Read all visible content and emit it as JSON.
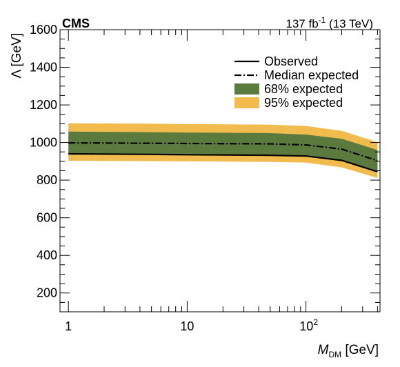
{
  "chart_data": {
    "type": "line",
    "experiment": "CMS",
    "luminosity": {
      "base": "137 fb",
      "exp": "-1",
      "suffix": " (13 TeV)"
    },
    "xlabel": {
      "main": "M",
      "sub": "DM",
      "unit": " [GeV]"
    },
    "ylabel": {
      "main": "Λ",
      "unit": " [GeV]"
    },
    "xscale": "log",
    "xlim": [
      0.85,
      420
    ],
    "ylim": [
      100,
      1600
    ],
    "x_ticks": [
      {
        "value": 1,
        "label": "1"
      },
      {
        "value": 10,
        "label": "10"
      },
      {
        "value": 100,
        "label": "10",
        "sup": "2"
      }
    ],
    "y_ticks": [
      {
        "value": 200,
        "label": "200"
      },
      {
        "value": 400,
        "label": "400"
      },
      {
        "value": 600,
        "label": "600"
      },
      {
        "value": 800,
        "label": "800"
      },
      {
        "value": 1000,
        "label": "1000"
      },
      {
        "value": 1200,
        "label": "1200"
      },
      {
        "value": 1400,
        "label": "1400"
      },
      {
        "value": 1600,
        "label": "1600"
      }
    ],
    "x": [
      1,
      5,
      10,
      50,
      100,
      200,
      400
    ],
    "series": [
      {
        "name": "Observed",
        "style": "solid",
        "color": "#000000",
        "values": [
          940,
          937,
          935,
          932,
          928,
          905,
          845
        ]
      },
      {
        "name": "Median expected",
        "style": "dashdot",
        "color": "#000000",
        "values": [
          998,
          996,
          995,
          993,
          987,
          965,
          903
        ]
      },
      {
        "name": "68% expected",
        "style": "band",
        "color": "#5a7a3e",
        "lower": [
          940,
          938,
          937,
          935,
          930,
          905,
          845
        ],
        "upper": [
          1058,
          1055,
          1053,
          1050,
          1042,
          1020,
          960
        ]
      },
      {
        "name": "95% expected",
        "style": "band",
        "color": "#f2bb4e",
        "lower": [
          903,
          901,
          900,
          897,
          893,
          868,
          812
        ],
        "upper": [
          1102,
          1100,
          1098,
          1095,
          1088,
          1062,
          1002
        ]
      }
    ],
    "legend_position": "top-right"
  }
}
